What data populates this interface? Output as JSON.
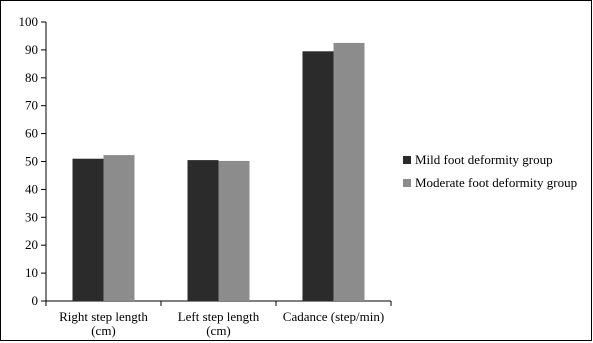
{
  "chart_data": {
    "type": "bar",
    "categories": [
      [
        "Right step length",
        "(cm)"
      ],
      [
        "Left step length",
        "(cm)"
      ],
      [
        "Cadance (step/min)"
      ]
    ],
    "series": [
      {
        "name": "Mild foot deformity group",
        "values": [
          51,
          50.5,
          89.5
        ],
        "color": "#2b2b2b"
      },
      {
        "name": "Moderate foot deformity group",
        "values": [
          52.3,
          50.2,
          92.5
        ],
        "color": "#8c8c8c"
      }
    ],
    "ylim": [
      0,
      100
    ],
    "yticks": [
      0,
      10,
      20,
      30,
      40,
      50,
      60,
      70,
      80,
      90,
      100
    ],
    "grid": false,
    "legend": "right",
    "title": "",
    "xlabel": "",
    "ylabel": ""
  }
}
